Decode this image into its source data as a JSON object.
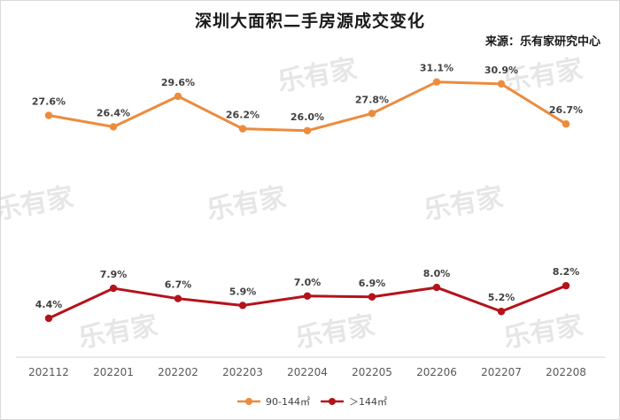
{
  "title": "深圳大面积二手房源成交变化",
  "source": "来源：乐有家研究中心",
  "watermark": "乐有家",
  "chart_data": {
    "type": "line",
    "title": "深圳大面积二手房源成交变化",
    "categories": [
      "202112",
      "202201",
      "202202",
      "202203",
      "202204",
      "202205",
      "202206",
      "202207",
      "202208"
    ],
    "series": [
      {
        "name": "90-144㎡",
        "color": "#ED8B3D",
        "values": [
          27.6,
          26.4,
          29.6,
          26.2,
          26.0,
          27.8,
          31.1,
          30.9,
          26.7
        ],
        "labels": [
          "27.6%",
          "26.4%",
          "29.6%",
          "26.2%",
          "26.0%",
          "27.8%",
          "31.1%",
          "30.9%",
          "26.7%"
        ]
      },
      {
        "name": "＞144㎡",
        "color": "#B5121B",
        "values": [
          4.4,
          7.9,
          6.7,
          5.9,
          7.0,
          6.9,
          8.0,
          5.2,
          8.2
        ],
        "labels": [
          "4.4%",
          "7.9%",
          "6.7%",
          "5.9%",
          "7.0%",
          "6.9%",
          "8.0%",
          "5.2%",
          "8.2%"
        ]
      }
    ],
    "grid": false,
    "legend_position": "bottom-center"
  }
}
